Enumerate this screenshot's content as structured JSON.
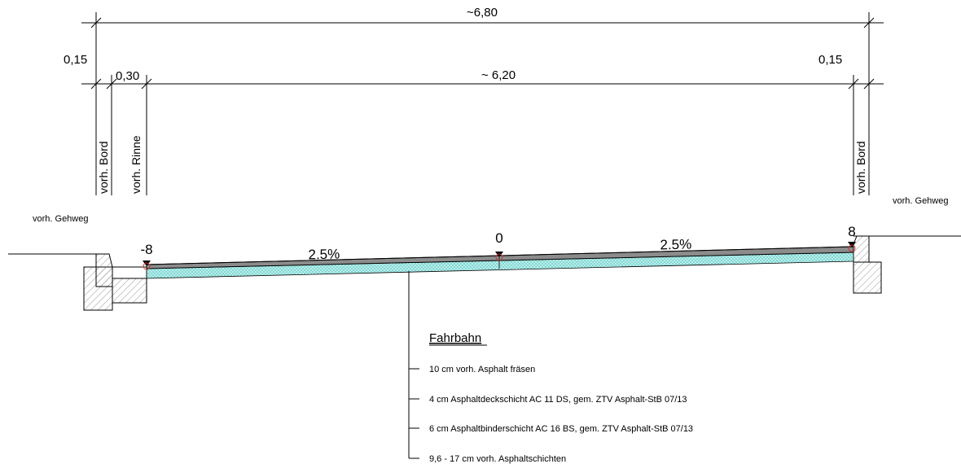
{
  "dimensions": {
    "total": "~6,80",
    "inner": "~ 6,20",
    "left_edge": "0,15",
    "gutter": "0,30",
    "right_edge": "0,15"
  },
  "labels": {
    "bord_left": "vorh. Bord",
    "rinne_left": "vorh. Rinne",
    "bord_right": "vorh. Bord",
    "gehweg_left": "vorh. Gehweg",
    "gehweg_right": "vorh. Gehweg"
  },
  "elevations": {
    "left": "-8",
    "center": "0",
    "right": "8"
  },
  "slopes": {
    "left": "2.5%",
    "right": "2.5%"
  },
  "legend": {
    "title": "Fahrbahn",
    "items": [
      "10 cm vorh. Asphalt fräsen",
      "4 cm Asphaltdeckschicht  AC 11 DS, gem. ZTV Asphalt-StB 07/13",
      "6 cm Asphaltbinderschicht  AC 16 BS, gem. ZTV Asphalt-StB 07/13",
      "9,6 - 17 cm vorh. Asphaltschichten"
    ]
  },
  "colors": {
    "layer_fill": "#7fd9d4",
    "surface_fill": "#8c8c8c",
    "marker": "#cc3333"
  }
}
